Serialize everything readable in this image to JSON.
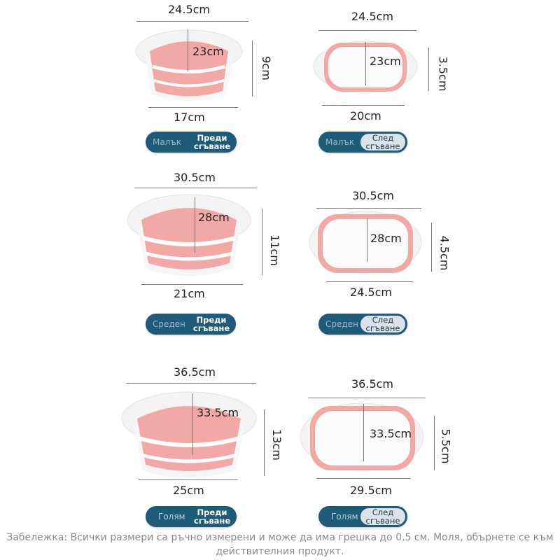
{
  "rows": [
    {
      "size_label": "Малък",
      "before": {
        "width": "24.5cm",
        "depth": "23cm",
        "height": "9cm",
        "base": "17cm",
        "state": "Преди сгъване"
      },
      "after": {
        "width": "24.5cm",
        "depth": "23cm",
        "height": "3.5cm",
        "base": "20cm",
        "state": "След сгъване"
      }
    },
    {
      "size_label": "Среден",
      "before": {
        "width": "30.5cm",
        "depth": "28cm",
        "height": "11cm",
        "base": "21cm",
        "state": "Преди сгъване"
      },
      "after": {
        "width": "30.5cm",
        "depth": "28cm",
        "height": "4.5cm",
        "base": "24.5cm",
        "state": "След сгъване"
      }
    },
    {
      "size_label": "Голям",
      "before": {
        "width": "36.5cm",
        "depth": "33.5cm",
        "height": "13cm",
        "base": "25cm",
        "state": "Преди сгъване"
      },
      "after": {
        "width": "36.5cm",
        "depth": "33.5cm",
        "height": "5.5cm",
        "base": "29.5cm",
        "state": "След сгъване"
      }
    }
  ],
  "note": "Забележка: Всички размери са ръчно измерени и може да има грешка до 0,5 см. Моля, обърнете се към действителния продукт.",
  "colors": {
    "pink": "#f2a9a6",
    "white": "#ffffff",
    "pill": "#1d5b78"
  }
}
